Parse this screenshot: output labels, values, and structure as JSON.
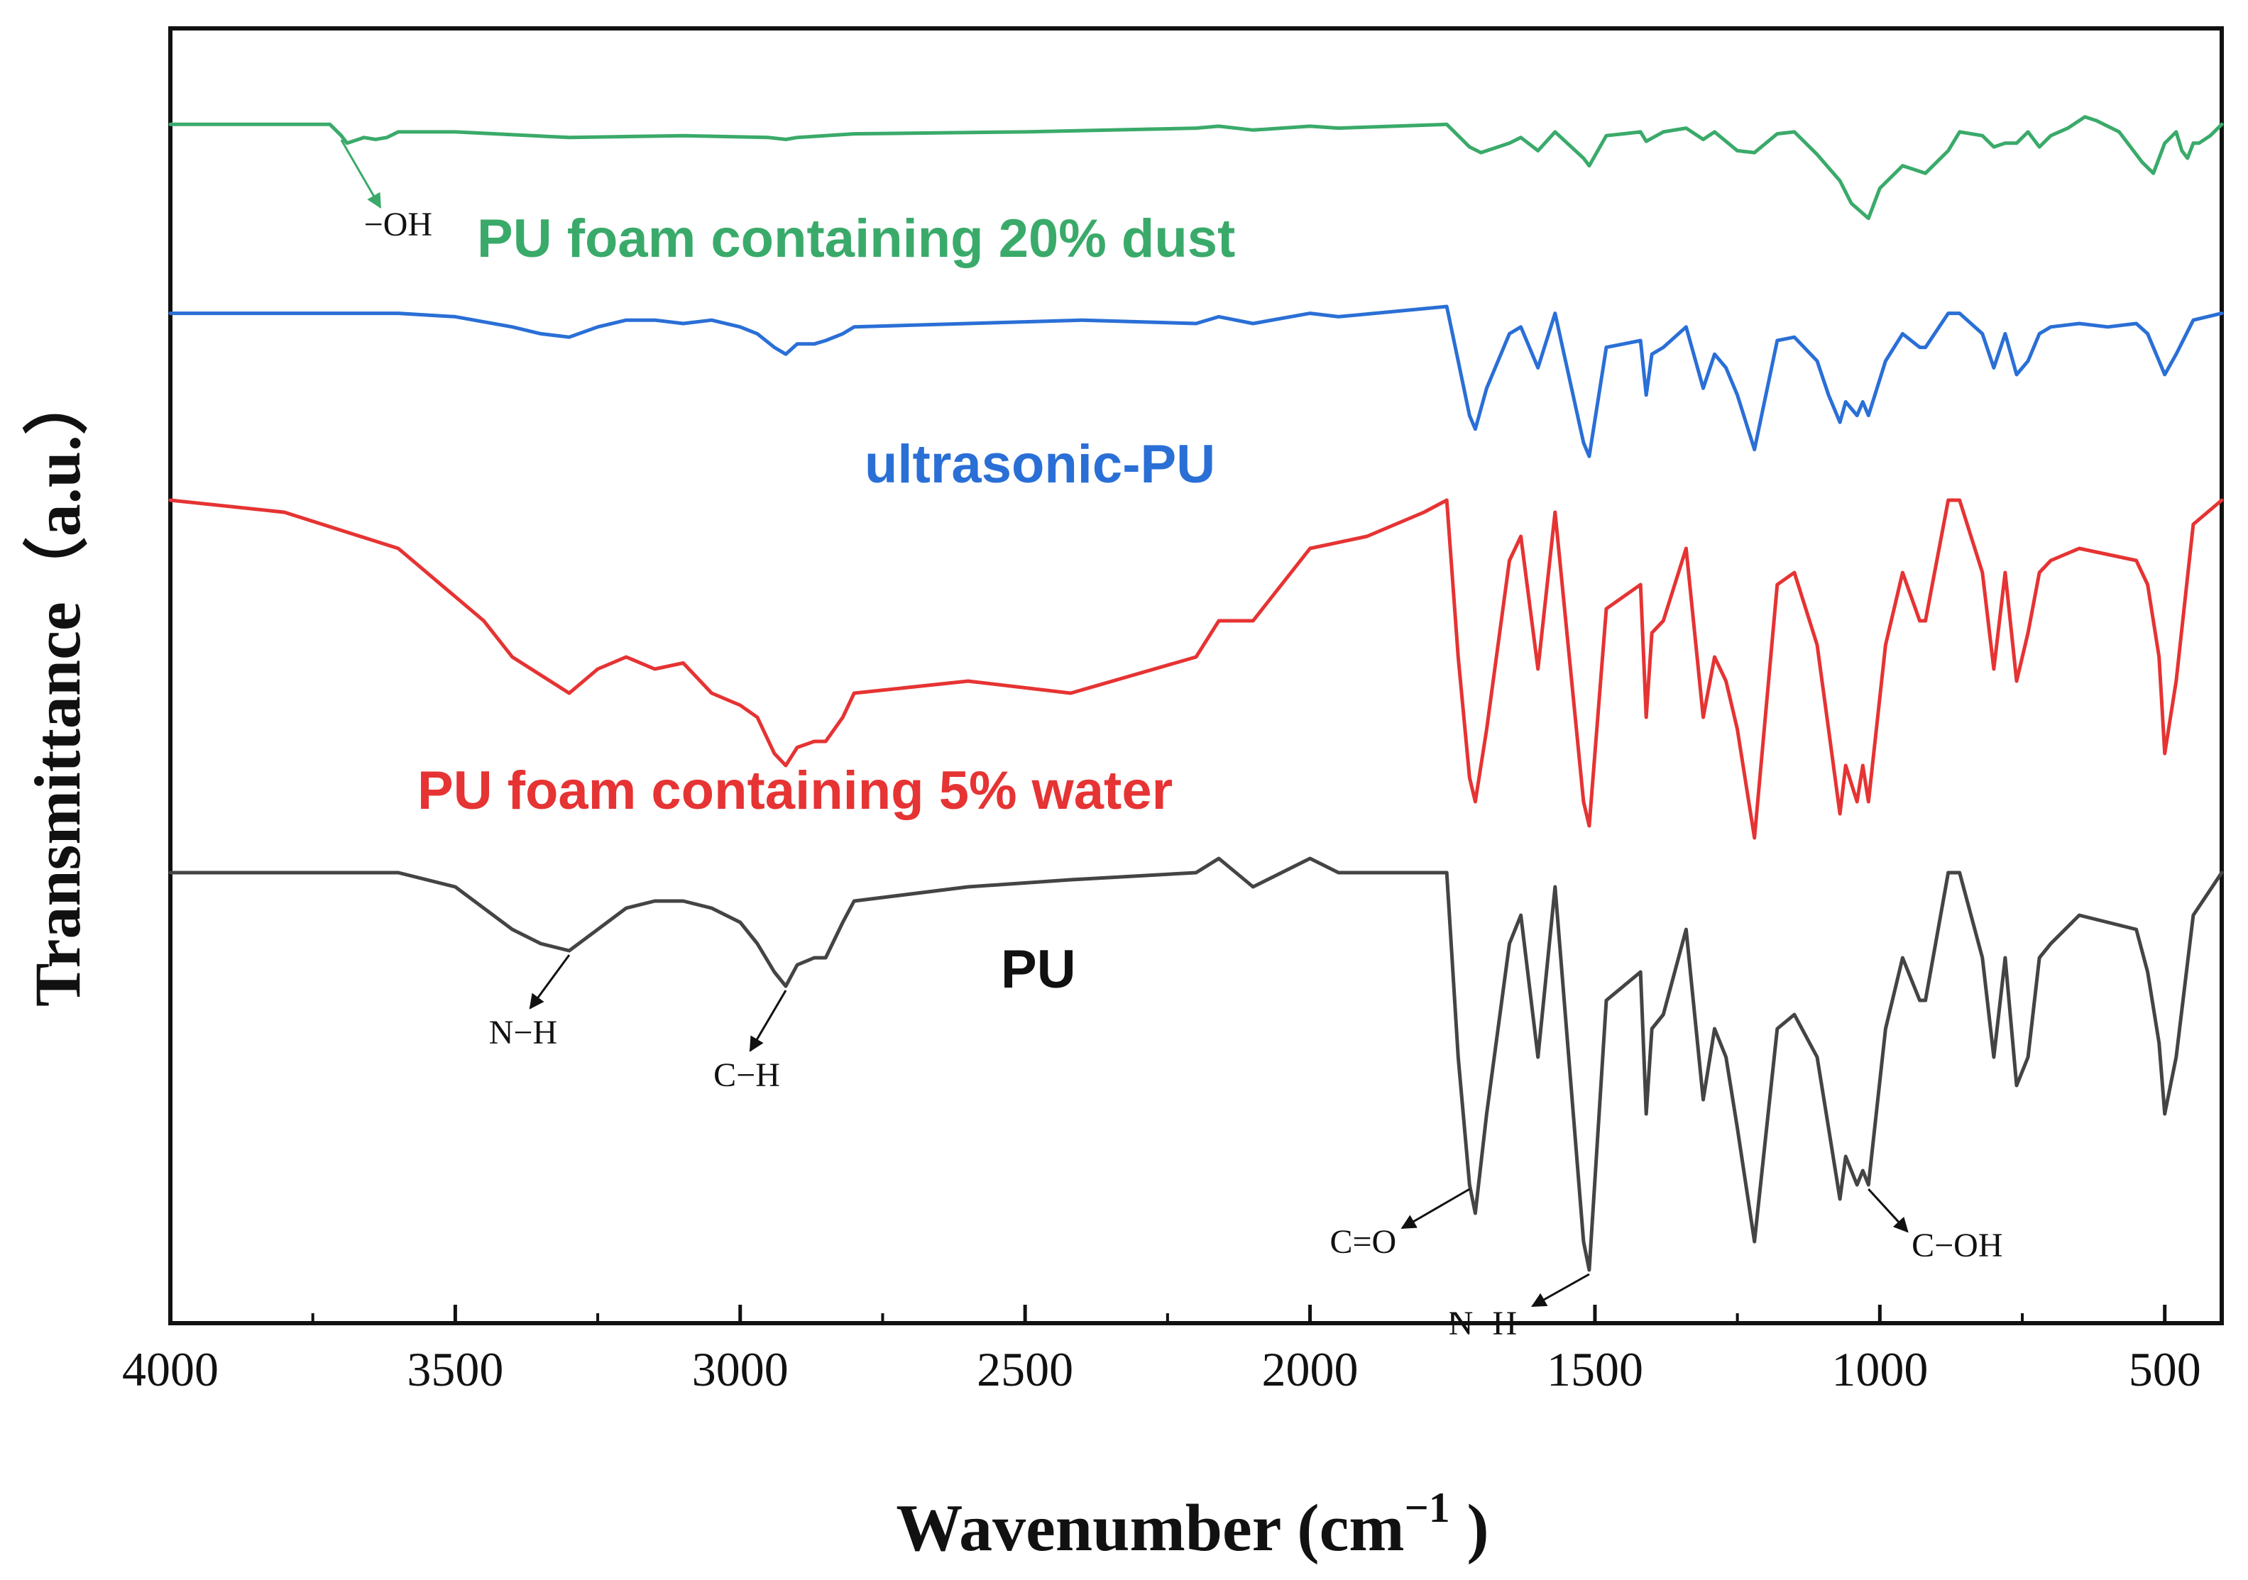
{
  "chart_data": {
    "type": "line",
    "title": "",
    "xlabel": "Wavenumber (cm",
    "xlabel_superscript": "−1",
    "xlabel_suffix": " )",
    "ylabel": "Transmittance（a.u.）",
    "xlim": [
      4000,
      400
    ],
    "x_reversed": true,
    "xticks": [
      4000,
      3500,
      3000,
      2500,
      2000,
      1500,
      1000,
      500
    ],
    "xtick_labels": [
      "4000",
      "3500",
      "3000",
      "2500",
      "2000",
      "1500",
      "1000",
      "500"
    ],
    "ylim": [
      0,
      100
    ],
    "yticks_shown": false,
    "grid": false,
    "series": [
      {
        "name": "PU foam containing 20% dust",
        "color": "#3aaa6a",
        "x": [
          4000,
          3720,
          3700,
          3690,
          3660,
          3640,
          3620,
          3600,
          3500,
          3300,
          3100,
          2950,
          2920,
          2900,
          2800,
          2500,
          2200,
          2160,
          2100,
          2000,
          1950,
          1760,
          1720,
          1700,
          1650,
          1630,
          1600,
          1570,
          1520,
          1510,
          1480,
          1450,
          1420,
          1410,
          1380,
          1340,
          1310,
          1290,
          1250,
          1220,
          1180,
          1150,
          1110,
          1070,
          1050,
          1020,
          1000,
          960,
          940,
          920,
          880,
          860,
          820,
          800,
          780,
          760,
          740,
          720,
          700,
          670,
          640,
          620,
          580,
          540,
          520,
          500,
          480,
          470,
          460,
          450,
          440,
          420,
          400
        ],
        "y": [
          99,
          99,
          96,
          94,
          95.5,
          95,
          95.5,
          97,
          97,
          95.5,
          96,
          95.5,
          95,
          95.5,
          96.5,
          97,
          98,
          98.5,
          97.5,
          98.5,
          98,
          99,
          93,
          91.5,
          94,
          95.5,
          92,
          97,
          90,
          88,
          96,
          96.5,
          97,
          94.5,
          97,
          98,
          95,
          97,
          92,
          91.5,
          96.5,
          97,
          91,
          84,
          78,
          74,
          82,
          88,
          87,
          86,
          92,
          97,
          96,
          93,
          94,
          94,
          97,
          93,
          96,
          98,
          101,
          100,
          97,
          89,
          86,
          94,
          97,
          92,
          90,
          94,
          94,
          96,
          99
        ]
      },
      {
        "name": "ultrasonic-PU",
        "color": "#2a6fd6",
        "x": [
          4000,
          3600,
          3500,
          3400,
          3350,
          3300,
          3250,
          3200,
          3150,
          3100,
          3050,
          3000,
          2970,
          2940,
          2920,
          2900,
          2870,
          2850,
          2820,
          2800,
          2600,
          2400,
          2200,
          2160,
          2100,
          2000,
          1950,
          1760,
          1740,
          1720,
          1710,
          1690,
          1650,
          1630,
          1600,
          1570,
          1520,
          1510,
          1480,
          1450,
          1420,
          1410,
          1400,
          1380,
          1340,
          1310,
          1290,
          1270,
          1250,
          1220,
          1180,
          1150,
          1110,
          1090,
          1070,
          1060,
          1040,
          1030,
          1020,
          990,
          960,
          930,
          920,
          880,
          860,
          820,
          800,
          780,
          760,
          740,
          720,
          700,
          650,
          600,
          550,
          530,
          510,
          500,
          480,
          450,
          400
        ],
        "y": [
          99,
          99,
          98.5,
          97,
          96,
          95.5,
          97,
          98,
          98,
          97.5,
          98,
          97,
          96,
          94,
          93,
          94.5,
          94.5,
          95,
          96,
          97,
          97.5,
          98,
          97.5,
          98.5,
          97.5,
          99,
          98.5,
          100,
          92,
          84,
          82,
          88,
          96,
          97,
          91,
          99,
          80,
          78,
          94,
          94.5,
          95,
          87,
          93,
          94,
          97,
          88,
          93,
          91,
          87,
          79,
          95,
          95.5,
          92,
          87,
          83,
          86,
          84,
          86,
          84,
          92,
          96,
          94,
          94,
          99,
          99,
          96,
          91,
          96,
          90,
          92,
          96,
          97,
          97.5,
          97,
          97.5,
          96,
          92,
          90,
          93,
          98,
          99
        ]
      },
      {
        "name": "PU foam containing 5% water",
        "color": "#e63333",
        "x": [
          4000,
          3800,
          3600,
          3500,
          3450,
          3400,
          3300,
          3250,
          3200,
          3150,
          3100,
          3050,
          3000,
          2970,
          2940,
          2920,
          2900,
          2870,
          2850,
          2820,
          2800,
          2600,
          2420,
          2200,
          2160,
          2100,
          2000,
          1900,
          1800,
          1760,
          1740,
          1720,
          1710,
          1690,
          1650,
          1630,
          1600,
          1570,
          1520,
          1510,
          1480,
          1450,
          1420,
          1410,
          1400,
          1380,
          1340,
          1310,
          1290,
          1270,
          1250,
          1220,
          1180,
          1150,
          1110,
          1090,
          1070,
          1060,
          1040,
          1030,
          1020,
          990,
          960,
          930,
          920,
          880,
          860,
          820,
          800,
          780,
          760,
          740,
          720,
          700,
          650,
          600,
          550,
          530,
          510,
          500,
          480,
          450,
          400
        ],
        "y": [
          99,
          98,
          95,
          91,
          89,
          86,
          83,
          85,
          86,
          85,
          85.5,
          83,
          82,
          81,
          78,
          77,
          78.5,
          79,
          79,
          81,
          83,
          84,
          83,
          86,
          89,
          89,
          95,
          96,
          98,
          99,
          86,
          76,
          74,
          80,
          94,
          96,
          85,
          98,
          74,
          72,
          90,
          91,
          92,
          81,
          88,
          89,
          95,
          81,
          86,
          84,
          80,
          71,
          92,
          93,
          87,
          80,
          73,
          77,
          74,
          77,
          74,
          87,
          93,
          89,
          89,
          99,
          99,
          93,
          85,
          93,
          84,
          88,
          93,
          94,
          95,
          94.5,
          94,
          92,
          86,
          78,
          84,
          97,
          99
        ]
      },
      {
        "name": "PU",
        "color": "#444444",
        "x": [
          4000,
          3600,
          3500,
          3450,
          3400,
          3350,
          3300,
          3250,
          3200,
          3150,
          3100,
          3050,
          3000,
          2970,
          2940,
          2920,
          2900,
          2870,
          2850,
          2820,
          2800,
          2600,
          2420,
          2200,
          2160,
          2100,
          2000,
          1950,
          1760,
          1740,
          1720,
          1710,
          1690,
          1650,
          1630,
          1600,
          1570,
          1520,
          1510,
          1480,
          1450,
          1420,
          1410,
          1400,
          1380,
          1340,
          1310,
          1290,
          1270,
          1250,
          1220,
          1180,
          1150,
          1110,
          1090,
          1070,
          1060,
          1040,
          1030,
          1020,
          990,
          960,
          930,
          920,
          880,
          860,
          820,
          800,
          780,
          760,
          740,
          720,
          700,
          650,
          600,
          550,
          530,
          510,
          500,
          480,
          450,
          400
        ],
        "y": [
          99,
          99,
          98,
          96.5,
          95,
          94,
          93.5,
          95,
          96.5,
          97,
          97,
          96.5,
          95.5,
          94,
          92,
          91,
          92.5,
          93,
          93,
          95.5,
          97,
          98,
          98.5,
          99,
          100,
          98,
          100,
          99,
          99,
          86,
          77,
          75,
          82,
          94,
          96,
          86,
          98,
          73,
          71,
          90,
          91,
          92,
          82,
          88,
          89,
          95,
          83,
          88,
          86,
          81,
          73,
          88,
          89,
          86,
          81,
          76,
          79,
          77,
          78,
          77,
          88,
          93,
          90,
          90,
          99,
          99,
          93,
          86,
          93,
          84,
          86,
          93,
          94,
          96,
          95.5,
          95,
          92,
          87,
          82,
          86,
          96,
          99
        ]
      }
    ],
    "series_labels": [
      {
        "text": "PU foam containing 20% dust",
        "color": "#3aaa6a"
      },
      {
        "text": "ultrasonic-PU",
        "color": "#2a6fd6"
      },
      {
        "text": "PU foam containing 5% water",
        "color": "#e63333"
      },
      {
        "text": "PU",
        "color": "#111111"
      }
    ],
    "annotations": [
      {
        "text": "−OH",
        "color": "#3aaa6a",
        "series": 0,
        "peak_x": 3700
      },
      {
        "text": "N−H",
        "color": "#111111",
        "series": 3,
        "peak_x": 3300
      },
      {
        "text": "C−H",
        "color": "#111111",
        "series": 3,
        "peak_x": 2920
      },
      {
        "text": "C=O",
        "color": "#111111",
        "series": 3,
        "peak_x": 1720
      },
      {
        "text": "N−H",
        "color": "#111111",
        "series": 3,
        "peak_x": 1510
      },
      {
        "text": "C−OH",
        "color": "#111111",
        "series": 3,
        "peak_x": 1020
      }
    ]
  }
}
